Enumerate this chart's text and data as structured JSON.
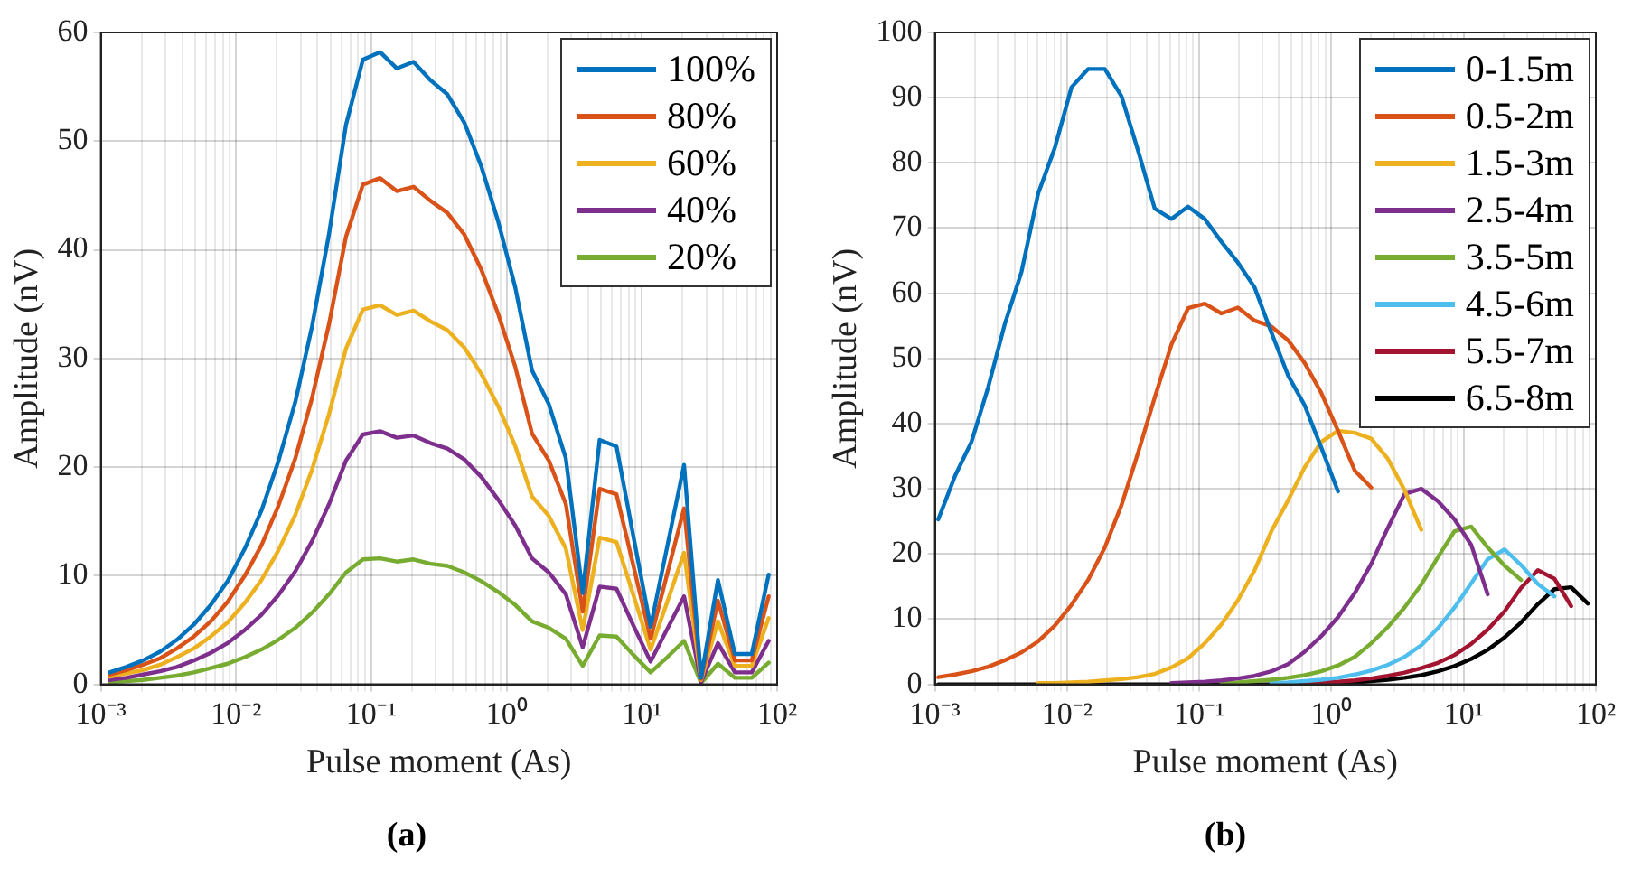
{
  "chart_data": [
    {
      "type": "line",
      "xlabel": "Pulse moment (As)",
      "ylabel": "Amplitude (nV)",
      "log": "x",
      "grid": true,
      "legend": "top right",
      "marker": "none",
      "line_style": "solid",
      "xlim": [
        0.001,
        100
      ],
      "ylim": [
        0,
        60
      ],
      "xticks": [
        {
          "value": 0.001,
          "label": "10⁻³"
        },
        {
          "value": 0.002,
          "label": null
        },
        {
          "value": 0.003,
          "label": null
        },
        {
          "value": 0.004,
          "label": null
        },
        {
          "value": 0.005,
          "label": null
        },
        {
          "value": 0.006,
          "label": null
        },
        {
          "value": 0.007,
          "label": null
        },
        {
          "value": 0.008,
          "label": null
        },
        {
          "value": 0.009,
          "label": null
        },
        {
          "value": 0.01,
          "label": "10⁻²"
        },
        {
          "value": 0.02,
          "label": null
        },
        {
          "value": 0.03,
          "label": null
        },
        {
          "value": 0.04,
          "label": null
        },
        {
          "value": 0.05,
          "label": null
        },
        {
          "value": 0.06,
          "label": null
        },
        {
          "value": 0.07,
          "label": null
        },
        {
          "value": 0.08,
          "label": null
        },
        {
          "value": 0.09,
          "label": null
        },
        {
          "value": 0.1,
          "label": "10⁻¹"
        },
        {
          "value": 0.2,
          "label": null
        },
        {
          "value": 0.3,
          "label": null
        },
        {
          "value": 0.4,
          "label": null
        },
        {
          "value": 0.5,
          "label": null
        },
        {
          "value": 0.6,
          "label": null
        },
        {
          "value": 0.7,
          "label": null
        },
        {
          "value": 0.8,
          "label": null
        },
        {
          "value": 0.9,
          "label": null
        },
        {
          "value": 1,
          "label": "10⁰"
        },
        {
          "value": 2,
          "label": null
        },
        {
          "value": 3,
          "label": null
        },
        {
          "value": 4,
          "label": null
        },
        {
          "value": 5,
          "label": null
        },
        {
          "value": 6,
          "label": null
        },
        {
          "value": 7,
          "label": null
        },
        {
          "value": 8,
          "label": null
        },
        {
          "value": 9,
          "label": null
        },
        {
          "value": 10,
          "label": "10¹"
        },
        {
          "value": 20,
          "label": null
        },
        {
          "value": 30,
          "label": null
        },
        {
          "value": 40,
          "label": null
        },
        {
          "value": 50,
          "label": null
        },
        {
          "value": 60,
          "label": null
        },
        {
          "value": 70,
          "label": null
        },
        {
          "value": 80,
          "label": null
        },
        {
          "value": 90,
          "label": null
        },
        {
          "value": 100,
          "label": "10²"
        }
      ],
      "yticks": [
        0,
        10,
        20,
        30,
        40,
        50,
        60
      ],
      "annotations": [
        "(a)"
      ],
      "x": [
        0.00116,
        0.00154,
        0.00205,
        0.00274,
        0.00365,
        0.00487,
        0.00649,
        0.00866,
        0.0116,
        0.0154,
        0.0205,
        0.0274,
        0.0365,
        0.0487,
        0.0649,
        0.0866,
        0.116,
        0.154,
        0.205,
        0.274,
        0.365,
        0.487,
        0.649,
        0.866,
        1.16,
        1.54,
        2.05,
        2.74,
        3.65,
        4.87,
        6.49,
        8.66,
        11.6,
        15.4,
        20.5,
        27.4,
        36.5,
        48.7,
        64.9,
        86.6
      ],
      "series": [
        {
          "name": "100%",
          "color": "#0072bd",
          "values": [
            1.1,
            1.6,
            2.2,
            3.0,
            4.1,
            5.5,
            7.3,
            9.5,
            12.5,
            16,
            20.5,
            26,
            33,
            41.5,
            51.5,
            57.5,
            58.2,
            56.7,
            57.3,
            55.6,
            54.3,
            51.7,
            47.7,
            42.6,
            36.5,
            28.9,
            25.8,
            20.8,
            8.4,
            22.5,
            21.9,
            13.6,
            5.3,
            12.7,
            20.2,
            0.6,
            9.6,
            2.8,
            2.8,
            10.1
          ]
        },
        {
          "name": "80%",
          "color": "#d95319",
          "values": [
            0.9,
            1.3,
            1.8,
            2.4,
            3.3,
            4.4,
            5.8,
            7.6,
            10,
            12.8,
            16.4,
            20.8,
            26.4,
            33.2,
            41.2,
            46,
            46.6,
            45.4,
            45.8,
            44.5,
            43.4,
            41.4,
            38.2,
            34.1,
            29.2,
            23.1,
            20.6,
            16.6,
            6.7,
            18,
            17.5,
            10.9,
            4.2,
            10.2,
            16.2,
            0.5,
            7.7,
            2.2,
            2.2,
            8.1
          ]
        },
        {
          "name": "60%",
          "color": "#edb120",
          "values": [
            0.7,
            1,
            1.3,
            1.8,
            2.5,
            3.3,
            4.4,
            5.7,
            7.5,
            9.6,
            12.3,
            15.6,
            19.8,
            24.9,
            30.9,
            34.5,
            34.9,
            34,
            34.4,
            33.4,
            32.6,
            31,
            28.6,
            25.6,
            21.9,
            17.3,
            15.5,
            12.5,
            5,
            13.5,
            13.1,
            8.2,
            3.2,
            7.6,
            12.1,
            0.4,
            5.8,
            1.7,
            1.7,
            6.1
          ]
        },
        {
          "name": "40%",
          "color": "#7e2f8e",
          "values": [
            0.4,
            0.6,
            0.9,
            1.2,
            1.6,
            2.2,
            2.9,
            3.8,
            5,
            6.4,
            8.2,
            10.4,
            13.2,
            16.6,
            20.6,
            23,
            23.3,
            22.7,
            22.9,
            22.2,
            21.7,
            20.7,
            19.1,
            17,
            14.6,
            11.6,
            10.3,
            8.3,
            3.4,
            9,
            8.8,
            5.4,
            2.1,
            5.1,
            8.1,
            0.2,
            3.8,
            1.1,
            1.1,
            4
          ]
        },
        {
          "name": "20%",
          "color": "#77ac30",
          "values": [
            0.2,
            0.3,
            0.4,
            0.6,
            0.8,
            1.1,
            1.5,
            1.9,
            2.5,
            3.2,
            4.1,
            5.2,
            6.6,
            8.3,
            10.3,
            11.5,
            11.6,
            11.3,
            11.5,
            11.1,
            10.9,
            10.3,
            9.5,
            8.5,
            7.3,
            5.8,
            5.2,
            4.2,
            1.7,
            4.5,
            4.4,
            2.7,
            1.1,
            2.5,
            4,
            0.1,
            1.9,
            0.6,
            0.6,
            2
          ]
        }
      ]
    },
    {
      "type": "line",
      "xlabel": "Pulse moment (As)",
      "ylabel": "Amplitude (nV)",
      "log": "x",
      "grid": true,
      "legend": "top right",
      "marker": "none",
      "line_style": "solid",
      "xlim": [
        0.001,
        100
      ],
      "ylim": [
        0,
        100
      ],
      "xticks": [
        {
          "value": 0.001,
          "label": "10⁻³"
        },
        {
          "value": 0.002,
          "label": null
        },
        {
          "value": 0.003,
          "label": null
        },
        {
          "value": 0.004,
          "label": null
        },
        {
          "value": 0.005,
          "label": null
        },
        {
          "value": 0.006,
          "label": null
        },
        {
          "value": 0.007,
          "label": null
        },
        {
          "value": 0.008,
          "label": null
        },
        {
          "value": 0.009,
          "label": null
        },
        {
          "value": 0.01,
          "label": "10⁻²"
        },
        {
          "value": 0.02,
          "label": null
        },
        {
          "value": 0.03,
          "label": null
        },
        {
          "value": 0.04,
          "label": null
        },
        {
          "value": 0.05,
          "label": null
        },
        {
          "value": 0.06,
          "label": null
        },
        {
          "value": 0.07,
          "label": null
        },
        {
          "value": 0.08,
          "label": null
        },
        {
          "value": 0.09,
          "label": null
        },
        {
          "value": 0.1,
          "label": "10⁻¹"
        },
        {
          "value": 0.2,
          "label": null
        },
        {
          "value": 0.3,
          "label": null
        },
        {
          "value": 0.4,
          "label": null
        },
        {
          "value": 0.5,
          "label": null
        },
        {
          "value": 0.6,
          "label": null
        },
        {
          "value": 0.7,
          "label": null
        },
        {
          "value": 0.8,
          "label": null
        },
        {
          "value": 0.9,
          "label": null
        },
        {
          "value": 1,
          "label": "10⁰"
        },
        {
          "value": 2,
          "label": null
        },
        {
          "value": 3,
          "label": null
        },
        {
          "value": 4,
          "label": null
        },
        {
          "value": 5,
          "label": null
        },
        {
          "value": 6,
          "label": null
        },
        {
          "value": 7,
          "label": null
        },
        {
          "value": 8,
          "label": null
        },
        {
          "value": 9,
          "label": null
        },
        {
          "value": 10,
          "label": "10¹"
        },
        {
          "value": 20,
          "label": null
        },
        {
          "value": 30,
          "label": null
        },
        {
          "value": 40,
          "label": null
        },
        {
          "value": 50,
          "label": null
        },
        {
          "value": 60,
          "label": null
        },
        {
          "value": 70,
          "label": null
        },
        {
          "value": 80,
          "label": null
        },
        {
          "value": 90,
          "label": null
        },
        {
          "value": 100,
          "label": "10²"
        }
      ],
      "yticks": [
        0,
        10,
        20,
        30,
        40,
        50,
        60,
        70,
        80,
        90,
        100
      ],
      "annotations": [
        "(b)"
      ],
      "x": [
        0.00106,
        0.00142,
        0.00189,
        0.00253,
        0.00338,
        0.00452,
        0.00604,
        0.00807,
        0.0108,
        0.0144,
        0.0193,
        0.0258,
        0.0344,
        0.046,
        0.0615,
        0.0822,
        0.11,
        0.147,
        0.196,
        0.262,
        0.351,
        0.469,
        0.627,
        0.838,
        1.12,
        1.5,
        2,
        2.67,
        3.57,
        4.78,
        6.38,
        8.53,
        11.4,
        15.2,
        20.4,
        27.2,
        36.4,
        48.6,
        65,
        86.9
      ],
      "series": [
        {
          "name": "0-1.5m",
          "color": "#0072bd",
          "values": [
            25.3,
            32,
            37.2,
            45.6,
            55.3,
            63.3,
            75.3,
            82.3,
            91.6,
            94.4,
            94.4,
            90.2,
            81.9,
            73,
            71.4,
            73.3,
            71.4,
            67.9,
            64.7,
            60.9,
            54,
            47.4,
            42.8,
            36.3,
            29.6,
            null,
            null,
            null,
            null,
            null,
            null,
            null,
            null,
            null,
            null,
            null,
            null,
            null,
            null,
            null
          ]
        },
        {
          "name": "0.5-2m",
          "color": "#d95319",
          "values": [
            1.1,
            1.5,
            2.0,
            2.7,
            3.7,
            4.9,
            6.6,
            9,
            12.2,
            16,
            21,
            27.5,
            35.5,
            44,
            52.1,
            57.7,
            58.4,
            56.9,
            57.8,
            55.8,
            54.9,
            52.8,
            49.3,
            44.7,
            38.9,
            32.8,
            30.2,
            null,
            null,
            null,
            null,
            null,
            null,
            null,
            null,
            null,
            null,
            null,
            null,
            null
          ]
        },
        {
          "name": "1.5-3m",
          "color": "#edb120",
          "values": [
            null,
            null,
            null,
            null,
            null,
            null,
            0.2,
            0.2,
            0.3,
            0.4,
            0.6,
            0.8,
            1.1,
            1.6,
            2.6,
            4.0,
            6.3,
            9.2,
            12.9,
            17.5,
            23.5,
            28.2,
            33.3,
            37.2,
            38.9,
            38.6,
            37.7,
            34.6,
            29.8,
            23.7,
            null,
            null,
            null,
            null,
            null,
            null,
            null,
            null,
            null,
            null
          ]
        },
        {
          "name": "2.5-4m",
          "color": "#7e2f8e",
          "values": [
            null,
            null,
            null,
            null,
            null,
            null,
            null,
            null,
            null,
            null,
            null,
            null,
            null,
            null,
            0.2,
            0.3,
            0.4,
            0.6,
            0.9,
            1.3,
            2.0,
            3.1,
            5.0,
            7.4,
            10.3,
            14,
            18.5,
            24,
            29.2,
            30,
            28.1,
            25.3,
            21.4,
            13.8,
            null,
            null,
            null,
            null,
            null,
            null
          ]
        },
        {
          "name": "3.5-5m",
          "color": "#77ac30",
          "values": [
            null,
            null,
            null,
            null,
            null,
            null,
            null,
            null,
            null,
            null,
            null,
            null,
            null,
            null,
            null,
            null,
            null,
            0.2,
            0.3,
            0.5,
            0.7,
            1.0,
            1.4,
            2.0,
            2.9,
            4.2,
            6.3,
            8.8,
            11.8,
            15.3,
            19.5,
            23.5,
            24.2,
            21,
            18.2,
            16,
            null,
            null,
            null,
            null
          ]
        },
        {
          "name": "4.5-6m",
          "color": "#4dbeee",
          "values": [
            null,
            null,
            null,
            null,
            null,
            null,
            null,
            null,
            null,
            null,
            null,
            null,
            null,
            null,
            null,
            null,
            null,
            null,
            null,
            null,
            0.2,
            0.3,
            0.5,
            0.7,
            1.0,
            1.5,
            2.1,
            3.0,
            4.2,
            6.0,
            8.6,
            11.8,
            15.5,
            19.2,
            20.7,
            18.3,
            15.4,
            13.5,
            null,
            null
          ]
        },
        {
          "name": "5.5-7m",
          "color": "#a2142f",
          "values": [
            null,
            null,
            null,
            null,
            null,
            null,
            null,
            null,
            null,
            null,
            null,
            null,
            null,
            null,
            null,
            null,
            null,
            null,
            null,
            null,
            null,
            null,
            0.2,
            0.3,
            0.4,
            0.6,
            0.9,
            1.3,
            1.8,
            2.5,
            3.3,
            4.5,
            6.2,
            8.4,
            11.2,
            14.8,
            17.5,
            16.2,
            12.0,
            null
          ]
        },
        {
          "name": "6.5-8m",
          "color": "#000000",
          "values": [
            0,
            0,
            0,
            0,
            0,
            0,
            0,
            0,
            0,
            0,
            0,
            0,
            0,
            0,
            0,
            0,
            0,
            0,
            0,
            0,
            0,
            0,
            0.1,
            0.1,
            0.2,
            0.3,
            0.5,
            0.7,
            1.0,
            1.4,
            2.0,
            2.8,
            3.9,
            5.3,
            7.2,
            9.5,
            12.3,
            14.6,
            14.9,
            12.4
          ]
        }
      ]
    }
  ]
}
